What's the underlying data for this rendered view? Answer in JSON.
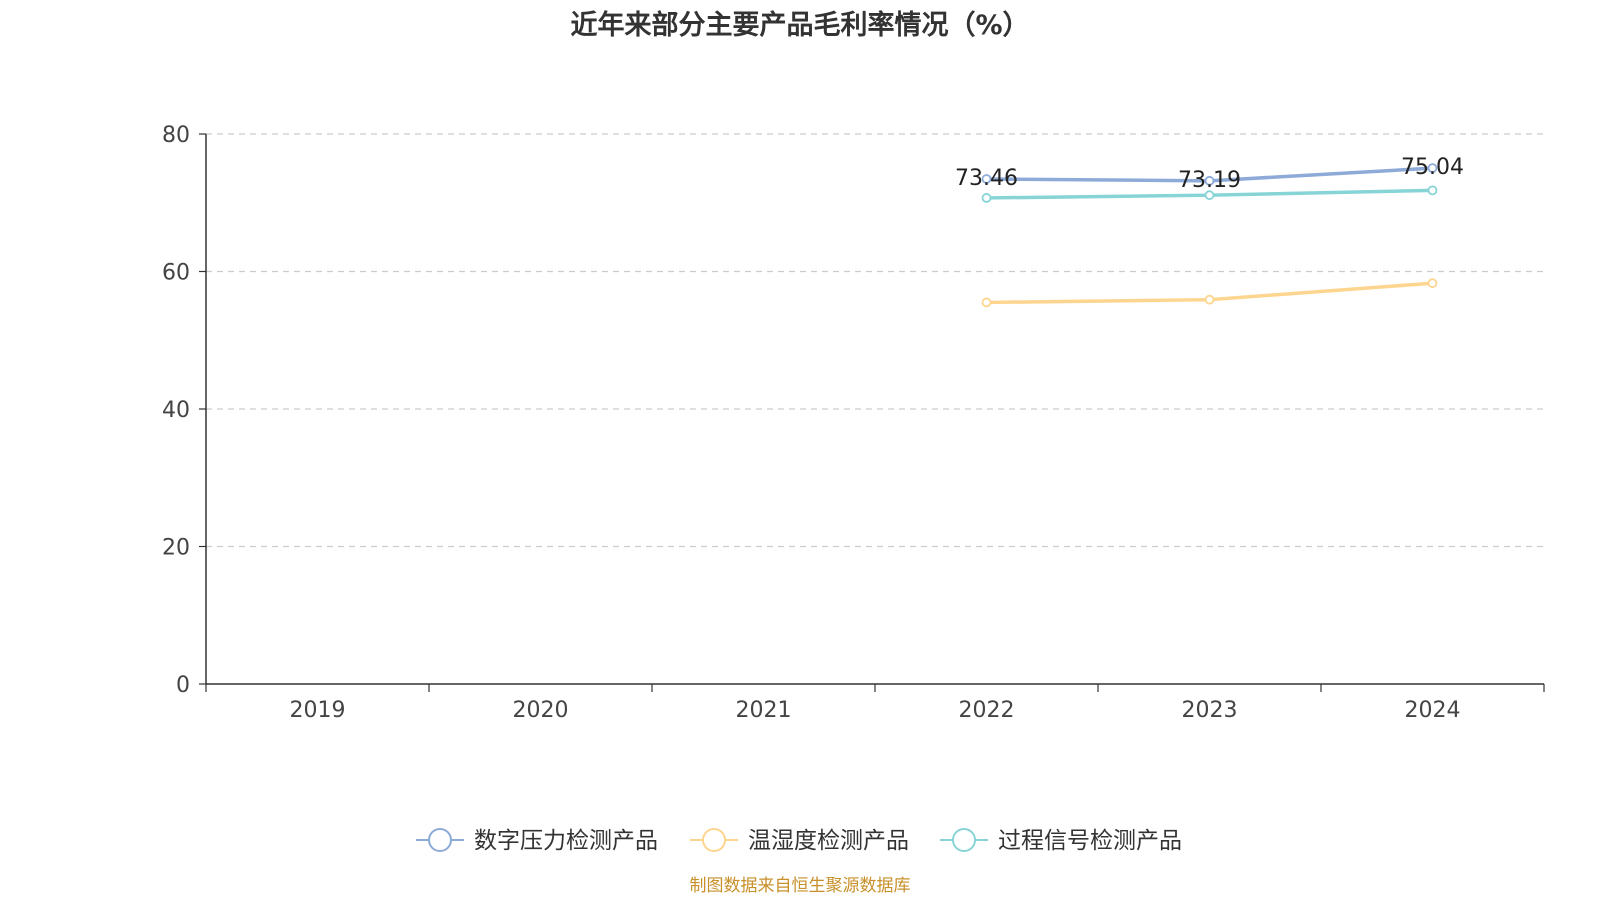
{
  "chart_data": {
    "type": "line",
    "title": "近年来部分主要产品毛利率情况（%）",
    "categories": [
      "2019",
      "2020",
      "2021",
      "2022",
      "2023",
      "2024"
    ],
    "ylim": [
      0,
      80
    ],
    "yticks": [
      0,
      20,
      40,
      60,
      80
    ],
    "grid": true,
    "legend_position": "bottom",
    "series": [
      {
        "name": "数字压力检测产品",
        "color": "#8eaad8",
        "values": [
          null,
          null,
          null,
          73.46,
          73.19,
          75.04
        ],
        "show_labels": true
      },
      {
        "name": "温湿度检测产品",
        "color": "#fdd58e",
        "values": [
          null,
          null,
          null,
          55.5,
          55.9,
          58.3
        ],
        "show_labels": false
      },
      {
        "name": "过程信号检测产品",
        "color": "#86d4d6",
        "values": [
          null,
          null,
          null,
          70.7,
          71.1,
          71.8
        ],
        "show_labels": false
      }
    ]
  },
  "source": "制图数据来自恒生聚源数据库"
}
